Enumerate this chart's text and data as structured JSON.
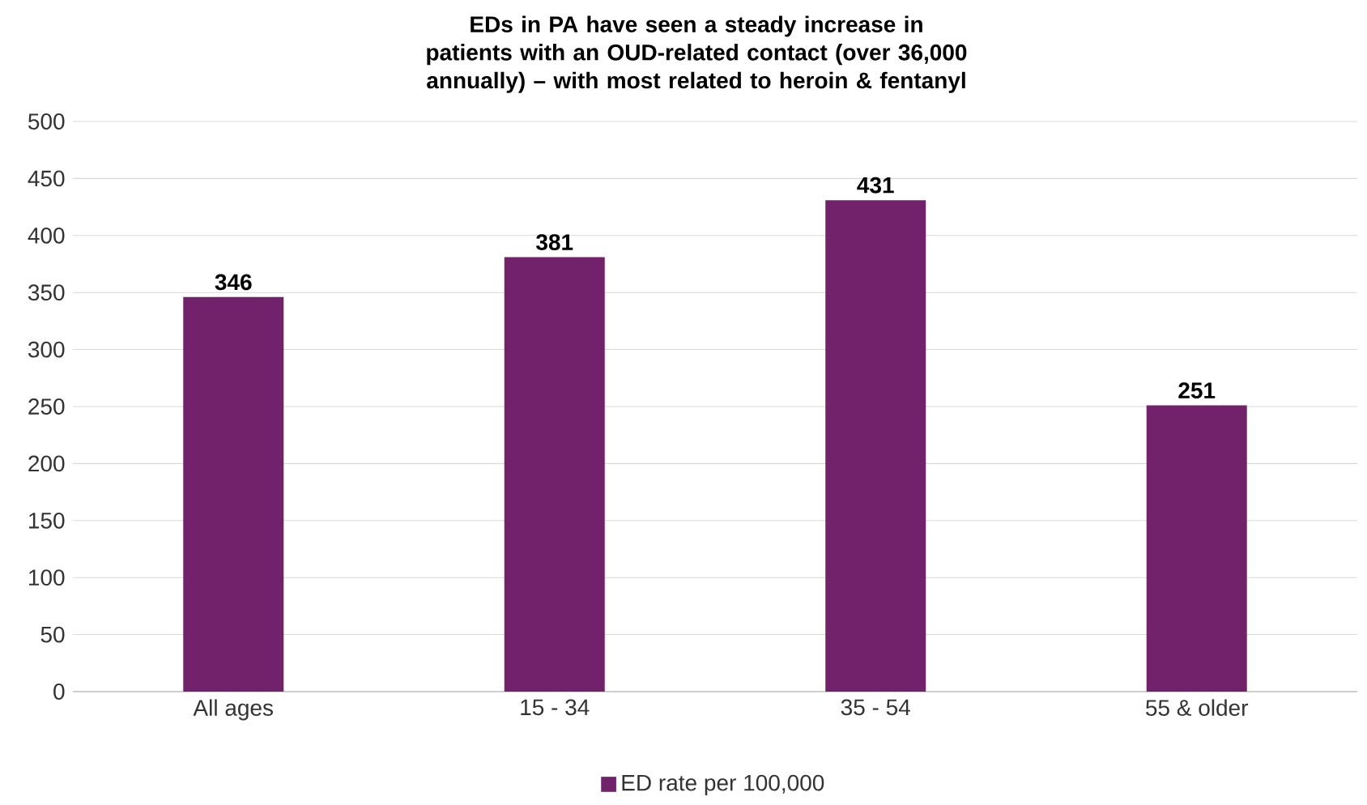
{
  "chart_data": {
    "type": "bar",
    "title": "EDs in PA have seen a steady increase in patients with an OUD-related contact (over 36,000 annually) – with most related to heroin & fentanyl",
    "categories": [
      "All ages",
      "15 - 34",
      "35 - 54",
      "55 & older"
    ],
    "series": [
      {
        "name": "ED rate per 100,000",
        "color": "#71226b",
        "values": [
          346,
          381,
          431,
          251
        ]
      }
    ],
    "ylim": [
      0,
      500
    ],
    "yticks": [
      0,
      50,
      100,
      150,
      200,
      250,
      300,
      350,
      400,
      450,
      500
    ],
    "grid": "y",
    "legend": "bottom",
    "data_labels": true
  }
}
